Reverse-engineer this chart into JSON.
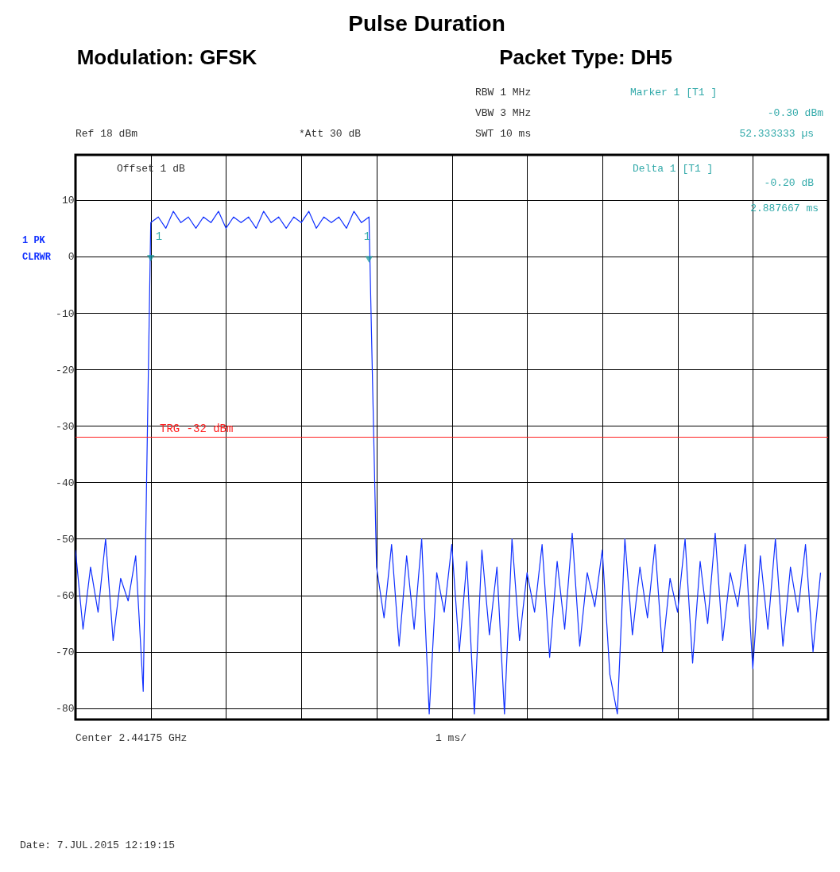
{
  "chart_data": {
    "type": "line",
    "title": "Pulse Duration",
    "annotations": [
      "Modulation: GFSK",
      "Packet Type: DH5",
      "RBW 1 MHz",
      "VBW 3 MHz",
      "SWT 10 ms",
      "Marker 1 [T1 ]",
      "-0.30 dBm",
      "52.333333 µs",
      "Ref 18 dBm",
      "*Att 30 dB",
      "Offset 1 dB",
      "Delta 1 [T1 ]",
      "-0.20 dB",
      "2.887667 ms",
      "1 PK",
      "CLRWR",
      "Center 2.44175 GHz",
      "1 ms/",
      "Date: 7.JUL.2015 12:19:15",
      "1",
      "1"
    ],
    "categories": [
      null,
      null,
      null,
      null,
      null,
      null,
      null,
      null,
      null,
      null,
      null,
      null,
      null,
      null,
      null,
      null,
      null,
      null,
      null,
      null,
      null,
      null,
      null,
      null,
      null,
      null,
      null,
      null,
      null,
      null,
      null,
      null,
      null,
      null,
      null,
      null,
      null,
      null,
      null,
      null,
      null,
      null,
      null,
      null,
      null,
      null,
      null,
      null,
      null,
      null,
      null,
      null,
      null,
      null,
      null,
      null,
      null,
      null,
      null,
      null,
      null,
      null,
      null,
      null,
      null,
      null,
      null,
      null,
      null,
      null,
      null,
      null,
      null,
      null,
      null,
      null,
      null,
      null,
      null,
      null,
      null,
      null,
      null,
      null,
      null,
      null,
      null,
      null,
      null,
      null,
      null,
      null,
      null,
      null,
      null,
      null,
      null,
      null,
      null,
      null
    ],
    "ylim": [
      -82,
      18
    ],
    "yticks": [
      -80,
      -70,
      -60,
      -50,
      -40,
      -30,
      -20,
      -10,
      0,
      10
    ],
    "grid": true,
    "tick_labels": "y",
    "ref_lines": [
      {
        "axis": "y",
        "value": -32,
        "label": "TRG -32 dBm",
        "color": "#ff2020"
      }
    ],
    "series": [
      {
        "color": "#1030ff",
        "values": [
          -52,
          -66,
          -55,
          -63,
          -50,
          -68,
          -57,
          -61,
          -53,
          -77,
          6,
          7,
          5,
          8,
          6,
          7,
          5,
          7,
          6,
          8,
          5,
          7,
          6,
          7,
          5,
          8,
          6,
          7,
          5,
          7,
          6,
          8,
          5,
          7,
          6,
          7,
          5,
          8,
          6,
          7,
          -55,
          -64,
          -51,
          -69,
          -53,
          -66,
          -50,
          -81,
          -56,
          -63,
          -51,
          -70,
          -54,
          -81,
          -52,
          -67,
          -55,
          -81,
          -50,
          -68,
          -56,
          -63,
          -51,
          -71,
          -54,
          -66,
          -49,
          -69,
          -56,
          -62,
          -52,
          -74,
          -81,
          -50,
          -67,
          -55,
          -64,
          -51,
          -70,
          -57,
          -63,
          -50,
          -72,
          -54,
          -65,
          -49,
          -68,
          -56,
          -62,
          -51,
          -73,
          -53,
          -66,
          -50,
          -69,
          -55,
          -63,
          -51,
          -70,
          -56
        ]
      },
      {
        "type": "scatter",
        "color": "#119999",
        "marker": "triangle",
        "values": [
          null,
          null,
          null,
          null,
          null,
          null,
          null,
          null,
          null,
          null,
          -0.3,
          null,
          null,
          null,
          null,
          null,
          null,
          null,
          null,
          null,
          null,
          null,
          null,
          null,
          null,
          null,
          null,
          null,
          null,
          null,
          null,
          null,
          null,
          null,
          null,
          null,
          null,
          null,
          null,
          -0.5,
          null,
          null,
          null,
          null,
          null,
          null,
          null,
          null,
          null,
          null,
          null,
          null,
          null,
          null,
          null,
          null,
          null,
          null,
          null,
          null,
          null,
          null,
          null,
          null,
          null,
          null,
          null,
          null,
          null,
          null,
          null,
          null,
          null,
          null,
          null,
          null,
          null,
          null,
          null,
          null,
          null,
          null,
          null,
          null,
          null,
          null,
          null,
          null,
          null,
          null,
          null,
          null,
          null,
          null,
          null,
          null,
          null,
          null,
          null,
          null
        ]
      }
    ]
  }
}
